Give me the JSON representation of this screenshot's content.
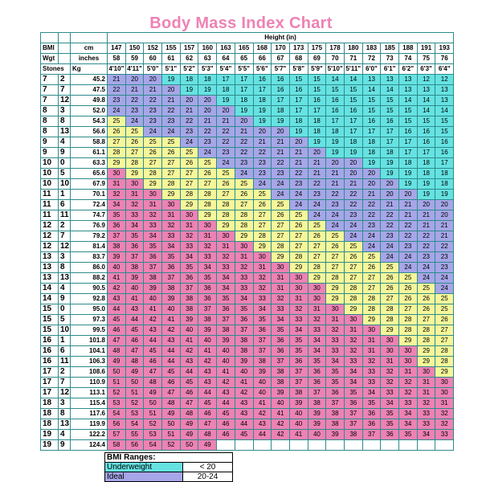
{
  "title": "Body Mass Index Chart",
  "labels": {
    "bmi": "BMI",
    "wgt": "Wgt",
    "stones": "Stones",
    "cm": "cm",
    "inches": "inches",
    "kg": "Kg",
    "height": "Height (in)"
  },
  "heights_cm": [
    "147",
    "150",
    "152",
    "155",
    "157",
    "160",
    "163",
    "165",
    "168",
    "170",
    "173",
    "175",
    "178",
    "180",
    "183",
    "185",
    "188",
    "191",
    "193"
  ],
  "heights_in": [
    "58",
    "59",
    "60",
    "61",
    "62",
    "63",
    "64",
    "65",
    "66",
    "67",
    "68",
    "69",
    "70",
    "71",
    "72",
    "73",
    "74",
    "75",
    "76"
  ],
  "heights_ft": [
    "4'10\"",
    "4'11\"",
    "5'0\"",
    "5'1\"",
    "5'2\"",
    "5'3\"",
    "5'4\"",
    "5'5\"",
    "5'6\"",
    "5'7\"",
    "5'8\"",
    "5'9\"",
    "5'10\"",
    "5'11\"",
    "6'0\"",
    "6'1\"",
    "6'2\"",
    "6'3\"",
    "6'4\""
  ],
  "rows": [
    {
      "st": "7",
      "lb": "2",
      "kg": "45.2",
      "b": [
        "21",
        "20",
        "20",
        "19",
        "18",
        "18",
        "17",
        "17",
        "16",
        "16",
        "15",
        "15",
        "14",
        "14",
        "13",
        "13",
        "13",
        "12",
        "12"
      ]
    },
    {
      "st": "7",
      "lb": "7",
      "kg": "47.5",
      "b": [
        "22",
        "21",
        "21",
        "20",
        "19",
        "19",
        "18",
        "17",
        "17",
        "16",
        "16",
        "15",
        "15",
        "15",
        "14",
        "14",
        "13",
        "13",
        "13"
      ]
    },
    {
      "st": "7",
      "lb": "12",
      "kg": "49.8",
      "b": [
        "23",
        "22",
        "22",
        "21",
        "20",
        "20",
        "19",
        "18",
        "18",
        "17",
        "17",
        "16",
        "16",
        "15",
        "15",
        "15",
        "14",
        "14",
        "13"
      ]
    },
    {
      "st": "8",
      "lb": "3",
      "kg": "52.0",
      "b": [
        "24",
        "23",
        "23",
        "22",
        "21",
        "20",
        "20",
        "19",
        "19",
        "18",
        "17",
        "17",
        "16",
        "16",
        "15",
        "15",
        "15",
        "14",
        "14"
      ]
    },
    {
      "st": "8",
      "lb": "8",
      "kg": "54.3",
      "b": [
        "25",
        "24",
        "23",
        "23",
        "22",
        "21",
        "21",
        "20",
        "19",
        "19",
        "18",
        "18",
        "17",
        "17",
        "16",
        "16",
        "15",
        "15",
        "15"
      ]
    },
    {
      "st": "8",
      "lb": "13",
      "kg": "56.6",
      "b": [
        "26",
        "25",
        "24",
        "24",
        "23",
        "22",
        "22",
        "21",
        "20",
        "20",
        "19",
        "18",
        "18",
        "17",
        "17",
        "17",
        "16",
        "16",
        "15"
      ]
    },
    {
      "st": "9",
      "lb": "4",
      "kg": "58.8",
      "b": [
        "27",
        "26",
        "25",
        "25",
        "24",
        "23",
        "22",
        "22",
        "21",
        "21",
        "20",
        "19",
        "19",
        "18",
        "18",
        "17",
        "17",
        "16",
        "16"
      ]
    },
    {
      "st": "9",
      "lb": "9",
      "kg": "61.1",
      "b": [
        "28",
        "27",
        "26",
        "26",
        "25",
        "24",
        "23",
        "22",
        "22",
        "21",
        "21",
        "20",
        "19",
        "19",
        "18",
        "18",
        "17",
        "17",
        "16"
      ]
    },
    {
      "st": "10",
      "lb": "0",
      "kg": "63.3",
      "b": [
        "29",
        "28",
        "27",
        "27",
        "26",
        "25",
        "24",
        "23",
        "23",
        "22",
        "21",
        "21",
        "20",
        "20",
        "19",
        "19",
        "18",
        "18",
        "17"
      ]
    },
    {
      "st": "10",
      "lb": "5",
      "kg": "65.6",
      "b": [
        "30",
        "29",
        "28",
        "27",
        "27",
        "26",
        "25",
        "24",
        "23",
        "23",
        "22",
        "21",
        "21",
        "20",
        "20",
        "19",
        "19",
        "18",
        "18"
      ]
    },
    {
      "st": "10",
      "lb": "10",
      "kg": "67.9",
      "b": [
        "31",
        "30",
        "29",
        "28",
        "27",
        "27",
        "26",
        "25",
        "24",
        "24",
        "23",
        "22",
        "21",
        "21",
        "20",
        "20",
        "19",
        "19",
        "18"
      ]
    },
    {
      "st": "11",
      "lb": "1",
      "kg": "70.1",
      "b": [
        "32",
        "31",
        "30",
        "29",
        "28",
        "28",
        "27",
        "26",
        "25",
        "24",
        "24",
        "23",
        "22",
        "22",
        "21",
        "20",
        "20",
        "19",
        "19"
      ]
    },
    {
      "st": "11",
      "lb": "6",
      "kg": "72.4",
      "b": [
        "34",
        "32",
        "31",
        "30",
        "29",
        "28",
        "28",
        "27",
        "26",
        "25",
        "24",
        "24",
        "23",
        "22",
        "22",
        "21",
        "21",
        "20",
        "20"
      ]
    },
    {
      "st": "11",
      "lb": "11",
      "kg": "74.7",
      "b": [
        "35",
        "33",
        "32",
        "31",
        "30",
        "29",
        "28",
        "28",
        "27",
        "26",
        "25",
        "24",
        "24",
        "23",
        "22",
        "22",
        "21",
        "21",
        "20"
      ]
    },
    {
      "st": "12",
      "lb": "2",
      "kg": "76.9",
      "b": [
        "36",
        "34",
        "33",
        "32",
        "31",
        "30",
        "29",
        "28",
        "27",
        "27",
        "26",
        "25",
        "24",
        "24",
        "23",
        "22",
        "22",
        "21",
        "21"
      ]
    },
    {
      "st": "12",
      "lb": "7",
      "kg": "79.2",
      "b": [
        "37",
        "35",
        "34",
        "33",
        "32",
        "31",
        "30",
        "29",
        "28",
        "27",
        "27",
        "26",
        "25",
        "24",
        "24",
        "23",
        "22",
        "22",
        "21"
      ]
    },
    {
      "st": "12",
      "lb": "12",
      "kg": "81.4",
      "b": [
        "38",
        "36",
        "35",
        "34",
        "33",
        "32",
        "31",
        "30",
        "29",
        "28",
        "27",
        "27",
        "26",
        "25",
        "24",
        "24",
        "23",
        "22",
        "22"
      ]
    },
    {
      "st": "13",
      "lb": "3",
      "kg": "83.7",
      "b": [
        "39",
        "37",
        "36",
        "35",
        "34",
        "33",
        "32",
        "31",
        "30",
        "29",
        "28",
        "27",
        "27",
        "26",
        "25",
        "24",
        "24",
        "23",
        "23"
      ]
    },
    {
      "st": "13",
      "lb": "8",
      "kg": "86.0",
      "b": [
        "40",
        "38",
        "37",
        "36",
        "35",
        "34",
        "33",
        "32",
        "31",
        "30",
        "29",
        "28",
        "27",
        "27",
        "26",
        "25",
        "24",
        "24",
        "23"
      ]
    },
    {
      "st": "13",
      "lb": "13",
      "kg": "88.2",
      "b": [
        "41",
        "39",
        "38",
        "37",
        "36",
        "35",
        "34",
        "33",
        "32",
        "31",
        "30",
        "29",
        "28",
        "27",
        "27",
        "26",
        "25",
        "24",
        "24"
      ]
    },
    {
      "st": "14",
      "lb": "4",
      "kg": "90.5",
      "b": [
        "42",
        "40",
        "39",
        "38",
        "37",
        "36",
        "34",
        "33",
        "32",
        "31",
        "30",
        "30",
        "29",
        "28",
        "27",
        "26",
        "26",
        "25",
        "24"
      ]
    },
    {
      "st": "14",
      "lb": "9",
      "kg": "92.8",
      "b": [
        "43",
        "41",
        "40",
        "39",
        "38",
        "36",
        "35",
        "34",
        "33",
        "32",
        "31",
        "30",
        "29",
        "28",
        "28",
        "27",
        "26",
        "26",
        "25"
      ]
    },
    {
      "st": "15",
      "lb": "0",
      "kg": "95.0",
      "b": [
        "44",
        "43",
        "41",
        "40",
        "38",
        "37",
        "36",
        "35",
        "34",
        "33",
        "32",
        "31",
        "30",
        "29",
        "28",
        "28",
        "27",
        "26",
        "25"
      ]
    },
    {
      "st": "15",
      "lb": "5",
      "kg": "97.3",
      "b": [
        "45",
        "44",
        "42",
        "41",
        "39",
        "38",
        "37",
        "36",
        "35",
        "34",
        "33",
        "32",
        "31",
        "30",
        "29",
        "28",
        "28",
        "27",
        "26"
      ]
    },
    {
      "st": "15",
      "lb": "10",
      "kg": "99.5",
      "b": [
        "46",
        "45",
        "43",
        "42",
        "40",
        "39",
        "38",
        "37",
        "36",
        "35",
        "34",
        "33",
        "32",
        "31",
        "30",
        "29",
        "28",
        "28",
        "27"
      ]
    },
    {
      "st": "16",
      "lb": "1",
      "kg": "101.8",
      "b": [
        "47",
        "46",
        "44",
        "43",
        "41",
        "40",
        "39",
        "38",
        "37",
        "36",
        "35",
        "34",
        "33",
        "32",
        "31",
        "30",
        "29",
        "28",
        "27"
      ]
    },
    {
      "st": "16",
      "lb": "6",
      "kg": "104.1",
      "b": [
        "48",
        "47",
        "45",
        "44",
        "42",
        "41",
        "40",
        "38",
        "37",
        "36",
        "35",
        "34",
        "33",
        "32",
        "31",
        "30",
        "30",
        "29",
        "28"
      ]
    },
    {
      "st": "16",
      "lb": "11",
      "kg": "106.3",
      "b": [
        "49",
        "48",
        "46",
        "44",
        "43",
        "42",
        "40",
        "39",
        "38",
        "37",
        "36",
        "35",
        "34",
        "33",
        "32",
        "31",
        "30",
        "29",
        "28"
      ]
    },
    {
      "st": "17",
      "lb": "2",
      "kg": "108.6",
      "b": [
        "50",
        "49",
        "47",
        "45",
        "44",
        "43",
        "41",
        "40",
        "39",
        "38",
        "37",
        "36",
        "35",
        "34",
        "33",
        "32",
        "31",
        "30",
        "29"
      ]
    },
    {
      "st": "17",
      "lb": "7",
      "kg": "110.9",
      "b": [
        "51",
        "50",
        "48",
        "46",
        "45",
        "43",
        "42",
        "41",
        "40",
        "38",
        "37",
        "36",
        "35",
        "34",
        "33",
        "32",
        "32",
        "31",
        "30"
      ]
    },
    {
      "st": "17",
      "lb": "12",
      "kg": "113.1",
      "b": [
        "52",
        "51",
        "49",
        "47",
        "46",
        "44",
        "43",
        "42",
        "40",
        "39",
        "38",
        "37",
        "36",
        "35",
        "34",
        "33",
        "32",
        "31",
        "30"
      ]
    },
    {
      "st": "18",
      "lb": "3",
      "kg": "115.4",
      "b": [
        "53",
        "52",
        "50",
        "48",
        "47",
        "45",
        "44",
        "43",
        "41",
        "40",
        "39",
        "38",
        "37",
        "36",
        "35",
        "34",
        "33",
        "32",
        "31"
      ]
    },
    {
      "st": "18",
      "lb": "8",
      "kg": "117.6",
      "b": [
        "54",
        "53",
        "51",
        "49",
        "48",
        "46",
        "45",
        "43",
        "42",
        "41",
        "40",
        "39",
        "38",
        "37",
        "36",
        "35",
        "34",
        "33",
        "32"
      ]
    },
    {
      "st": "18",
      "lb": "13",
      "kg": "119.9",
      "b": [
        "56",
        "54",
        "52",
        "50",
        "49",
        "47",
        "46",
        "44",
        "43",
        "42",
        "40",
        "39",
        "38",
        "37",
        "36",
        "35",
        "34",
        "33",
        "32"
      ]
    },
    {
      "st": "19",
      "lb": "4",
      "kg": "122.2",
      "b": [
        "57",
        "55",
        "53",
        "51",
        "49",
        "48",
        "46",
        "45",
        "44",
        "42",
        "41",
        "40",
        "39",
        "38",
        "37",
        "36",
        "35",
        "34",
        "33"
      ]
    },
    {
      "st": "19",
      "lb": "9",
      "kg": "124.4",
      "b": [
        "58",
        "56",
        "54",
        "52",
        "50",
        "49",
        "",
        "",
        "",
        "",
        "",
        "",
        "",
        "",
        "",
        "",
        "",
        "",
        ""
      ]
    }
  ],
  "legend": {
    "title": "BMI Ranges:",
    "items": [
      {
        "label": "Underweight",
        "range": "< 20",
        "color": "#66e2e2"
      },
      {
        "label": "Ideal",
        "range": "20-24",
        "color": "#a6a6e8"
      }
    ]
  },
  "colors": {
    "title": "#ee82b4",
    "underweight": "#66e2e2",
    "ideal": "#a6a6e8",
    "overweight": "#f6f69a",
    "obese": "#ee82b4",
    "border": "#2e8b8b"
  }
}
